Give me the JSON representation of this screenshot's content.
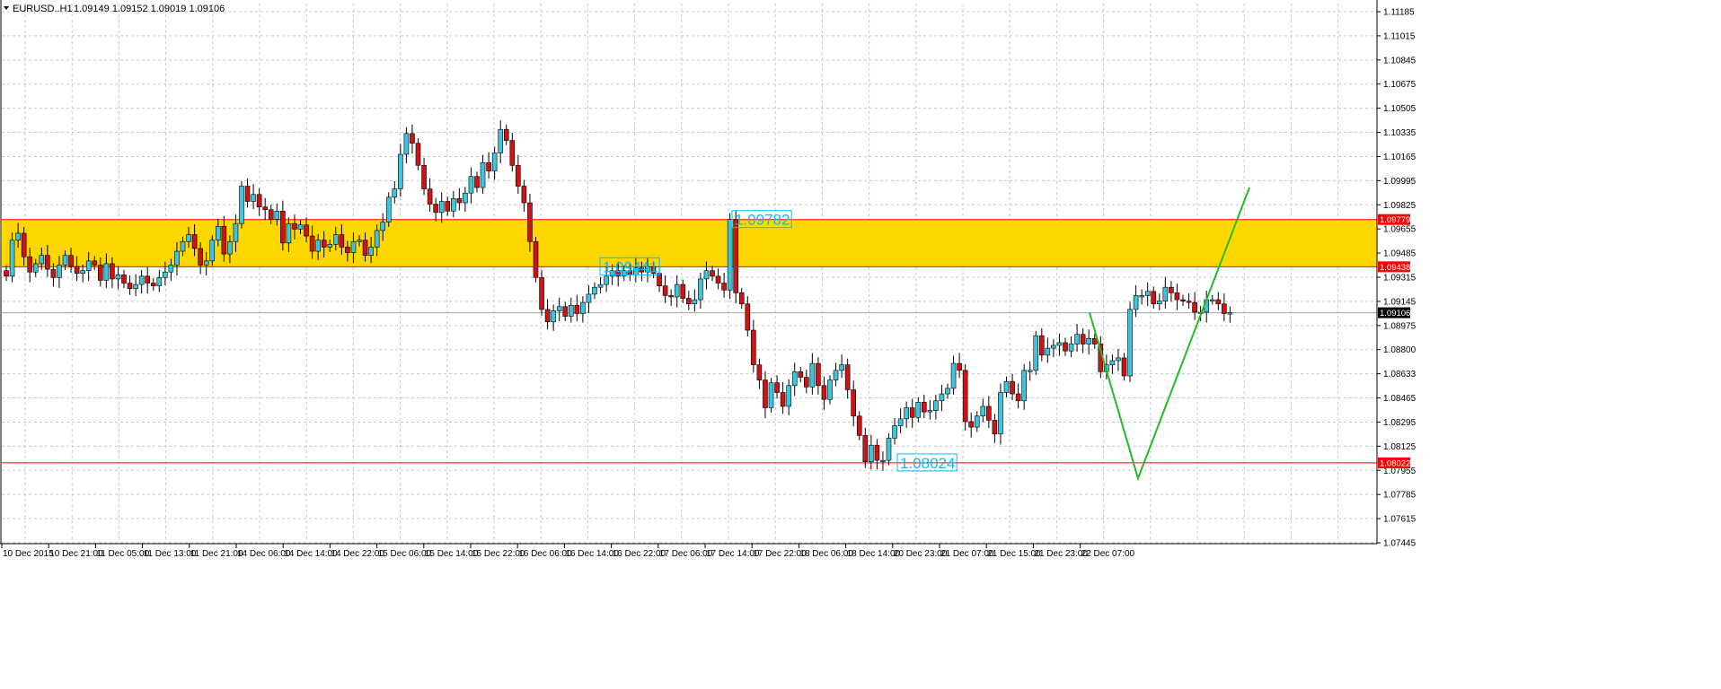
{
  "header": {
    "dropdown_icon": "triangle-down-icon",
    "symbol": "EURUSD..H1",
    "ohlc": "1.09149 1.09152 1.09019 1.09106"
  },
  "colors": {
    "background": "#ffffff",
    "grid": "#c8c8c8",
    "bull_candle": "#40c4dc",
    "bear_candle": "#cc1414",
    "wick": "#000000",
    "zone_fill": "#ffd700",
    "level_line": "#ff0000",
    "price_box": "#ff0000",
    "current_price_box": "#000000",
    "projection_line": "#22bb22",
    "callout_text": "#00bfff"
  },
  "price_markers": {
    "current": "1.09106",
    "zone_top": "1.09779",
    "zone_bottom": "1.09438",
    "support": "1.08022"
  },
  "callouts": {
    "zone_top": "1.09782",
    "zone_bottom": "1.09441",
    "support": "1.08024"
  },
  "chart_data": {
    "type": "candlestick",
    "title": "EURUSD..H1",
    "ylim": [
      1.07445,
      1.1128
    ],
    "y_ticks": [
      "1.11185",
      "1.11015",
      "1.10845",
      "1.10675",
      "1.10505",
      "1.10335",
      "1.10165",
      "1.09995",
      "1.09825",
      "1.09655",
      "1.09485",
      "1.09315",
      "1.09145",
      "1.08975",
      "1.08800",
      "1.08633",
      "1.08465",
      "1.08295",
      "1.08125",
      "1.07955",
      "1.07785",
      "1.07615",
      "1.07445"
    ],
    "x_ticks": [
      "10 Dec 2015",
      "10 Dec 21:00",
      "11 Dec 05:00",
      "11 Dec 13:00",
      "11 Dec 21:00",
      "14 Dec 06:00",
      "14 Dec 14:00",
      "14 Dec 22:00",
      "15 Dec 06:00",
      "15 Dec 14:00",
      "15 Dec 22:00",
      "16 Dec 06:00",
      "16 Dec 14:00",
      "16 Dec 22:00",
      "17 Dec 06:00",
      "17 Dec 14:00",
      "17 Dec 22:00",
      "18 Dec 06:00",
      "18 Dec 14:00",
      "20 Dec 23:00",
      "21 Dec 07:00",
      "21 Dec 15:00",
      "21 Dec 23:00",
      "22 Dec 07:00"
    ],
    "grid": true,
    "zone": {
      "top": 1.09779,
      "bottom": 1.09438
    },
    "support_level": 1.08022,
    "current_price": 1.09106,
    "projection": [
      [
        0,
        1.09106
      ],
      [
        7,
        1.0791
      ],
      [
        23,
        1.1001
      ]
    ],
    "closes": [
      1.0937,
      1.0963,
      1.0968,
      1.0951,
      1.094,
      1.0946,
      1.0952,
      1.0942,
      1.0936,
      1.0945,
      1.0952,
      1.0944,
      1.0939,
      1.0941,
      1.0948,
      1.0945,
      1.0934,
      1.0946,
      1.0935,
      1.0938,
      1.0932,
      1.0928,
      1.0931,
      1.0937,
      1.0932,
      1.093,
      1.0936,
      1.094,
      1.0945,
      1.0955,
      1.0962,
      1.0967,
      1.0957,
      1.0945,
      1.0948,
      1.0963,
      1.0973,
      1.0953,
      1.0962,
      1.0975,
      1.1002,
      1.0991,
      1.0996,
      1.0987,
      1.0985,
      1.0978,
      1.0984,
      1.0961,
      1.0975,
      1.0971,
      1.0974,
      1.0966,
      1.0955,
      1.0963,
      1.0958,
      1.096,
      1.0967,
      1.0958,
      1.0954,
      1.0962,
      1.0963,
      1.0952,
      1.0958,
      1.097,
      1.0976,
      1.0994,
      1.1,
      1.1025,
      1.104,
      1.1033,
      1.1017,
      1.1,
      1.0989,
      1.0983,
      1.0991,
      1.0984,
      1.0993,
      1.099,
      1.0997,
      1.1009,
      1.1001,
      1.1019,
      1.1013,
      1.1026,
      1.1043,
      1.1035,
      1.1017,
      1.1002,
      1.099,
      1.0962,
      1.0936,
      1.0913,
      1.0904,
      1.0912,
      1.0915,
      1.0908,
      1.0916,
      1.091,
      1.0918,
      1.0924,
      1.0929,
      1.0931,
      1.0937,
      1.0941,
      1.0937,
      1.0941,
      1.0938,
      1.0943,
      1.094,
      1.0944,
      1.0939,
      1.093,
      1.0923,
      1.0922,
      1.0931,
      1.0921,
      1.0917,
      1.092,
      1.0935,
      1.0941,
      1.0937,
      1.0932,
      1.0927,
      1.0978,
      1.0925,
      1.0917,
      1.0898,
      1.0873,
      1.0862,
      1.0842,
      1.086,
      1.0853,
      1.0843,
      1.0858,
      1.0868,
      1.0864,
      1.0857,
      1.0874,
      1.0858,
      1.0848,
      1.0862,
      1.0869,
      1.0873,
      1.0855,
      1.0836,
      1.0822,
      1.0803,
      1.0815,
      1.0804,
      1.0804,
      1.082,
      1.0829,
      1.0834,
      1.0842,
      1.0835,
      1.0846,
      1.0839,
      1.084,
      1.0847,
      1.0852,
      1.0856,
      1.0874,
      1.0869,
      1.0832,
      1.0828,
      1.0836,
      1.0843,
      1.0833,
      1.0823,
      1.0853,
      1.0861,
      1.0852,
      1.0847,
      1.0869,
      1.0869,
      1.0894,
      1.088,
      1.0885,
      1.0887,
      1.0889,
      1.0883,
      1.0888,
      1.0895,
      1.0888,
      1.0892,
      1.0888,
      1.0868,
      1.0873,
      1.0876,
      1.0878,
      1.0865,
      1.0913,
      1.0923,
      1.0923,
      1.0926,
      1.0917,
      1.0919,
      1.0929,
      1.0925,
      1.092,
      1.0919,
      1.0918,
      1.0911,
      1.0911,
      1.092,
      1.092,
      1.0917,
      1.091,
      1.09106
    ]
  }
}
